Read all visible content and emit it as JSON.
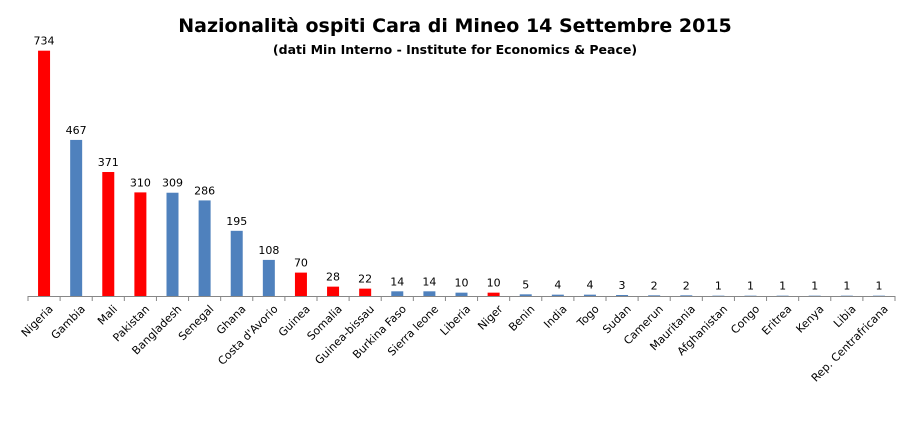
{
  "chart_data": {
    "type": "bar",
    "title": "Nazionalità ospiti Cara di Mineo 14 Settembre 2015",
    "subtitle": "(dati Min Interno - Institute for Economics  & Peace)",
    "xlabel": "",
    "ylabel": "",
    "ylim": [
      0,
      760
    ],
    "grid": false,
    "legend": "none",
    "categories": [
      "Nigeria",
      "Gambia",
      "Mali",
      "Pakistan",
      "Bangladesh",
      "Senegal",
      "Ghana",
      "Costa d'Avorio",
      "Guinea",
      "Somalia",
      "Guinea-bissau",
      "Burkina Faso",
      "Sierra leone",
      "Liberia",
      "Niger",
      "Benin",
      "India",
      "Togo",
      "Sudan",
      "Camerun",
      "Mauritania",
      "Afghanistan",
      "Congo",
      "Eritrea",
      "Kenya",
      "Libia",
      "Rep. Centrafricana"
    ],
    "values": [
      734,
      467,
      371,
      310,
      309,
      286,
      195,
      108,
      70,
      28,
      22,
      14,
      14,
      10,
      10,
      5,
      4,
      4,
      3,
      2,
      2,
      1,
      1,
      1,
      1,
      1,
      1
    ],
    "bar_colors": [
      "#ff0000",
      "#4f81bd",
      "#ff0000",
      "#ff0000",
      "#4f81bd",
      "#4f81bd",
      "#4f81bd",
      "#4f81bd",
      "#ff0000",
      "#ff0000",
      "#ff0000",
      "#4f81bd",
      "#4f81bd",
      "#4f81bd",
      "#ff0000",
      "#4f81bd",
      "#4f81bd",
      "#4f81bd",
      "#4f81bd",
      "#4f81bd",
      "#4f81bd",
      "#4f81bd",
      "#4f81bd",
      "#4f81bd",
      "#4f81bd",
      "#4f81bd",
      "#4f81bd"
    ]
  }
}
